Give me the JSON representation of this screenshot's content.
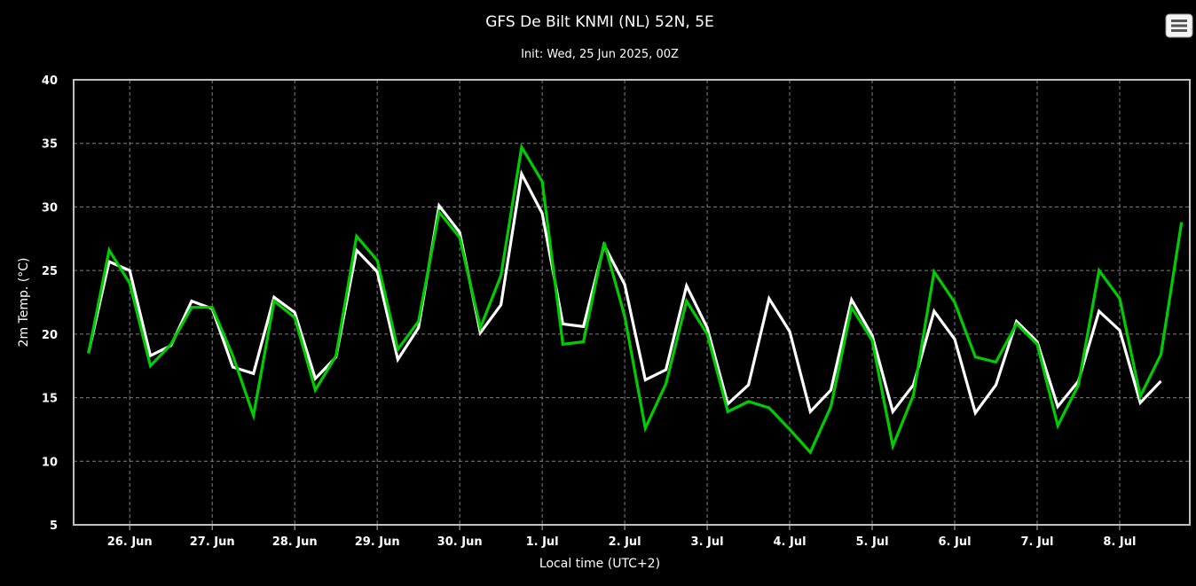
{
  "header": {
    "title": "GFS De Bilt KNMI (NL) 52N, 5E",
    "subtitle": "Init: Wed, 25 Jun 2025, 00Z"
  },
  "menu": {
    "icon": "hamburger-menu-icon"
  },
  "chart_data": {
    "type": "line",
    "xlabel": "Local time (UTC+2)",
    "ylabel": "2m Temp. (°C)",
    "ylim": [
      5,
      40
    ],
    "yticks": [
      5,
      10,
      15,
      20,
      25,
      30,
      35,
      40
    ],
    "xticks": [
      "26. Jun",
      "27. Jun",
      "28. Jun",
      "29. Jun",
      "30. Jun",
      "1. Jul",
      "2. Jul",
      "3. Jul",
      "4. Jul",
      "5. Jul",
      "6. Jul",
      "7. Jul",
      "8. Jul"
    ],
    "xlim_days": [
      -0.68,
      12.85
    ],
    "grid": true,
    "background": "#000000",
    "series": [
      {
        "color": "#ffffff",
        "x": [
          -0.5,
          -0.25,
          0,
          0.25,
          0.5,
          0.75,
          1,
          1.25,
          1.5,
          1.75,
          2,
          2.25,
          2.5,
          2.75,
          3,
          3.25,
          3.5,
          3.75,
          4,
          4.25,
          4.5,
          4.75,
          5,
          5.25,
          5.5,
          5.75,
          6,
          6.25,
          6.5,
          6.75,
          7,
          7.25,
          7.5,
          7.75,
          8,
          8.25,
          8.5,
          8.75,
          9,
          9.25,
          9.5,
          9.75,
          10,
          10.25,
          10.5,
          10.75,
          11,
          11.25,
          11.5,
          11.75,
          12,
          12.25,
          12.5
        ],
        "values": [
          18.5,
          25.7,
          25.0,
          18.3,
          19.1,
          22.6,
          22.0,
          17.4,
          16.9,
          22.9,
          21.7,
          16.5,
          18.2,
          26.6,
          24.9,
          18.0,
          20.5,
          30.1,
          28.0,
          20.1,
          22.3,
          32.6,
          29.5,
          20.8,
          20.6,
          27.0,
          23.9,
          16.4,
          17.2,
          23.8,
          20.5,
          14.5,
          16.0,
          22.8,
          20.2,
          13.9,
          15.6,
          22.7,
          19.9,
          13.9,
          16.0,
          21.8,
          19.6,
          13.8,
          16.0,
          21.0,
          19.4,
          14.3,
          16.3,
          21.8,
          20.3,
          14.6,
          16.3
        ]
      },
      {
        "color": "#00cc00",
        "x": [
          -0.5,
          -0.25,
          0,
          0.25,
          0.5,
          0.75,
          1,
          1.25,
          1.5,
          1.75,
          2,
          2.25,
          2.5,
          2.75,
          3,
          3.25,
          3.5,
          3.75,
          4,
          4.25,
          4.5,
          4.75,
          5,
          5.25,
          5.5,
          5.75,
          6,
          6.25,
          6.5,
          6.75,
          7,
          7.25,
          7.5,
          7.75,
          8,
          8.25,
          8.5,
          8.75,
          9,
          9.25,
          9.5,
          9.75,
          10,
          10.25,
          10.5,
          10.75,
          11,
          11.25,
          11.5,
          11.75,
          12,
          12.25,
          12.5,
          12.75
        ],
        "values": [
          18.5,
          26.6,
          24.0,
          17.5,
          19.2,
          22.1,
          22.1,
          18.3,
          13.6,
          22.6,
          21.3,
          15.6,
          18.3,
          27.7,
          25.8,
          18.8,
          21.0,
          29.6,
          27.6,
          20.5,
          24.6,
          34.7,
          32.0,
          19.2,
          19.4,
          27.2,
          21.4,
          12.6,
          16.1,
          22.6,
          20.0,
          13.9,
          14.7,
          14.2,
          12.5,
          10.7,
          14.3,
          22.1,
          19.5,
          11.2,
          15.2,
          24.9,
          22.5,
          18.2,
          17.8,
          20.8,
          19.2,
          12.8,
          16.0,
          25.0,
          22.8,
          15.1,
          18.4,
          28.8
        ]
      }
    ]
  }
}
